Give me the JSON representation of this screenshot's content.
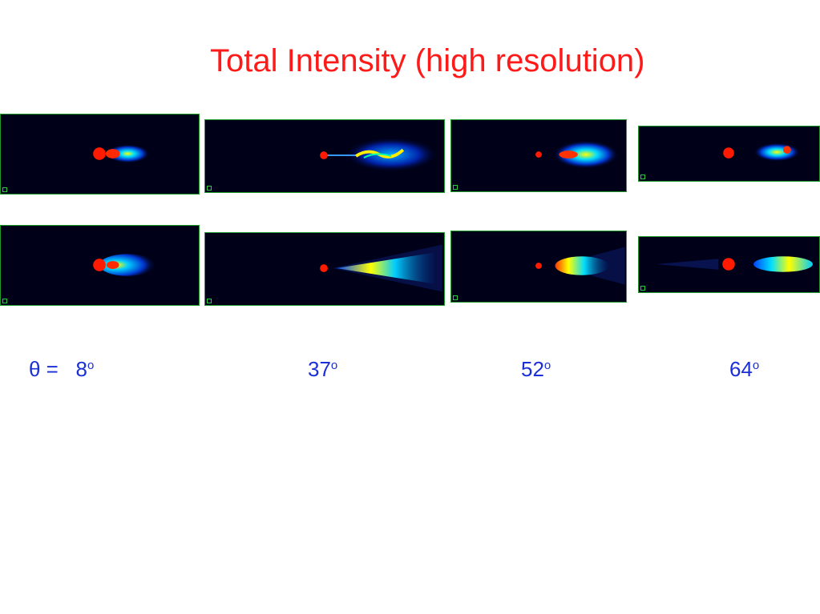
{
  "title": "Total Intensity (high resolution)",
  "angle_prefix": "θ =",
  "angles": [
    {
      "value": "8",
      "unit": "o"
    },
    {
      "value": "37",
      "unit": "o"
    },
    {
      "value": "52",
      "unit": "o"
    },
    {
      "value": "64",
      "unit": "o"
    }
  ],
  "colors": {
    "title": "#ff1a1a",
    "angle_text": "#1b2fd6",
    "panel_background": "#000018",
    "panel_border": "#1f9c2c"
  }
}
